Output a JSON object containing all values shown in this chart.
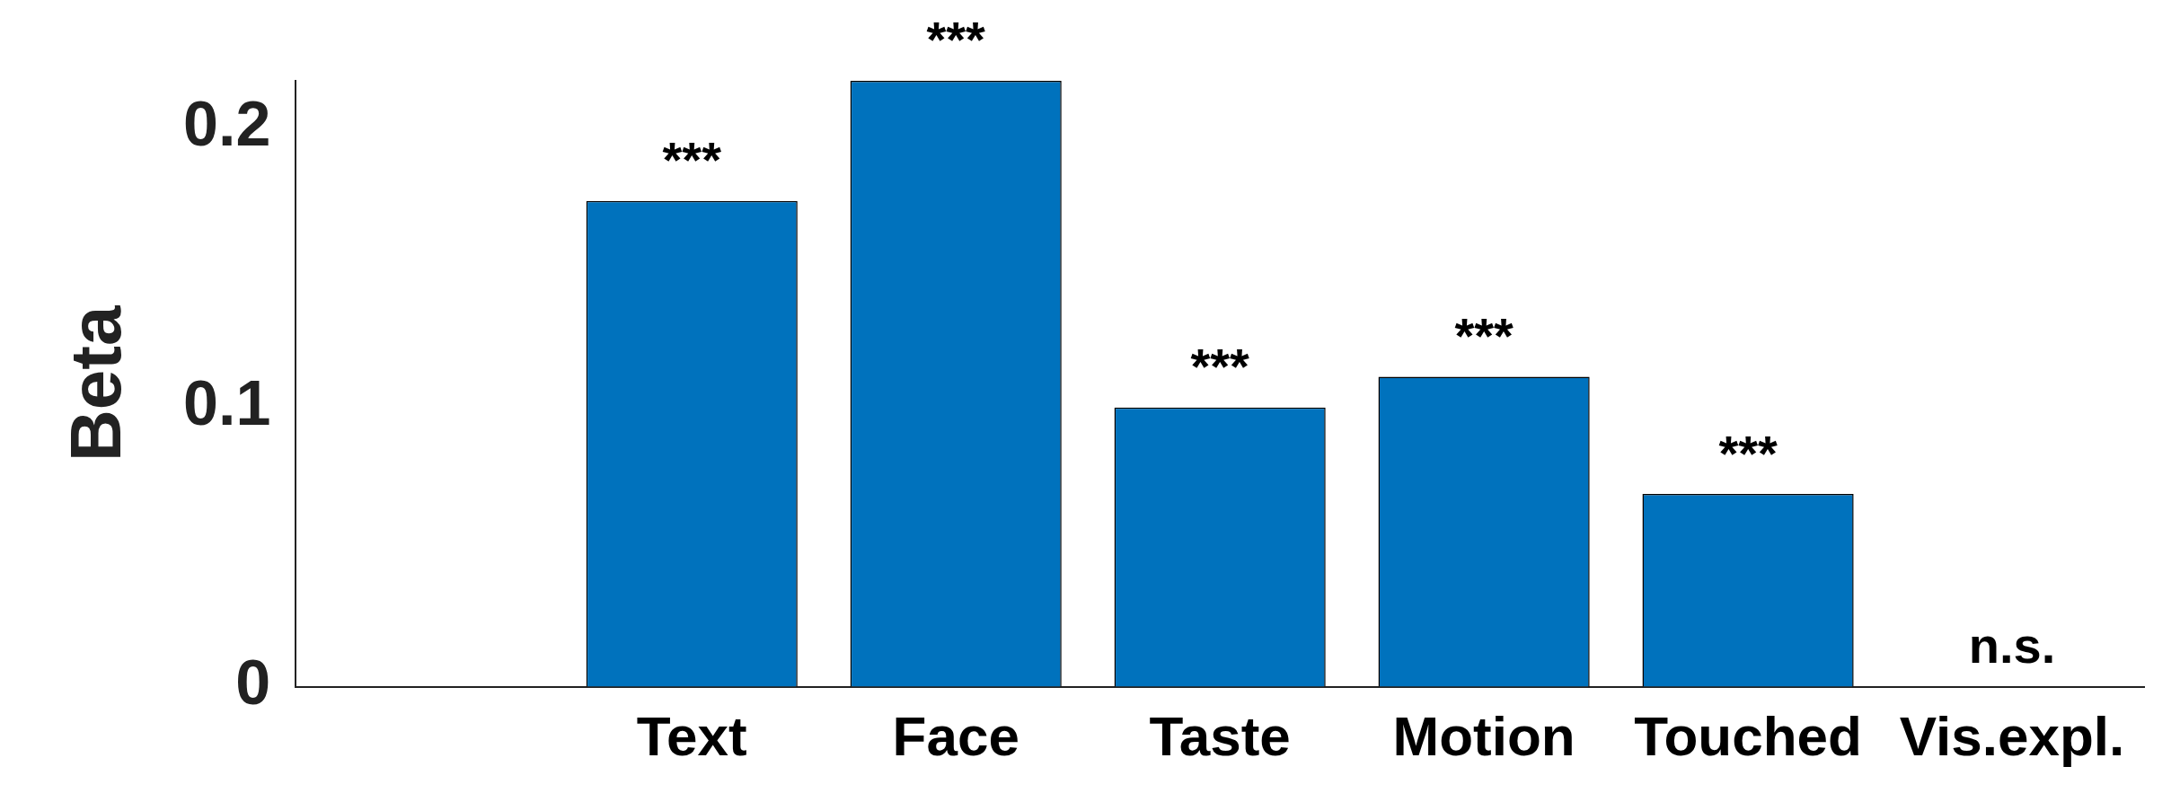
{
  "chart_data": {
    "type": "bar",
    "ylabel": "Beta",
    "categories": [
      null,
      "Text",
      "Face",
      "Taste",
      "Motion",
      "Touched",
      "Vis.expl."
    ],
    "values": [
      null,
      0.174,
      0.217,
      0.1,
      0.111,
      0.069,
      0
    ],
    "color": "#0072bd",
    "ylim": [
      0,
      0.217
    ],
    "yticks": [
      0,
      0.1,
      0.2
    ],
    "grid": false,
    "legend": false,
    "annotations": [
      {
        "text": "***",
        "x": "Text",
        "y": 0.174
      },
      {
        "text": "***",
        "x": "Face",
        "y": 0.217
      },
      {
        "text": "***",
        "x": "Taste",
        "y": 0.1
      },
      {
        "text": "***",
        "x": "Motion",
        "y": 0.111
      },
      {
        "text": "***",
        "x": "Touched",
        "y": 0.069
      },
      {
        "text": "n.s.",
        "x": "Vis.expl.",
        "y": 0
      }
    ]
  }
}
